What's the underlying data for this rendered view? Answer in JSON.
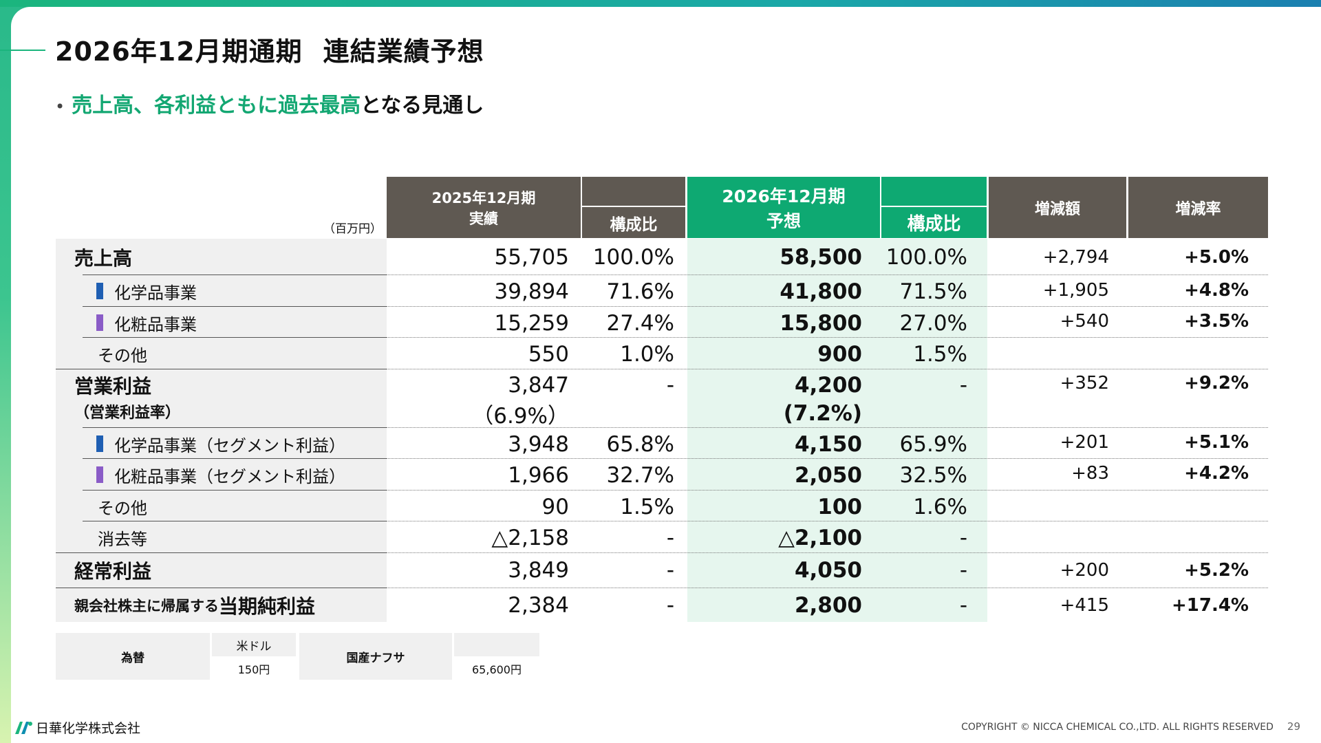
{
  "title_part1": "2026年12月期通期",
  "title_part2": "連結業績予想",
  "bullet_highlight": "売上高、各利益ともに過去最高",
  "bullet_rest": "となる見通し",
  "unit": "（百万円）",
  "headers": {
    "prev_period": "2025年12月期",
    "prev_sub": "実績",
    "prev_ratio": "構成比",
    "next_period": "2026年12月期",
    "next_sub": "予想",
    "next_ratio": "構成比",
    "change_amount": "増減額",
    "change_rate": "増減率"
  },
  "rows": [
    {
      "label": "売上高",
      "prev": "55,705",
      "prev_ratio": "100.0%",
      "next": "58,500",
      "next_ratio": "100.0%",
      "diff": "+2,794",
      "rate": "+5.0%"
    },
    {
      "label": "化学品事業",
      "prev": "39,894",
      "prev_ratio": "71.6%",
      "next": "41,800",
      "next_ratio": "71.5%",
      "diff": "+1,905",
      "rate": "+4.8%"
    },
    {
      "label": "化粧品事業",
      "prev": "15,259",
      "prev_ratio": "27.4%",
      "next": "15,800",
      "next_ratio": "27.0%",
      "diff": "+540",
      "rate": "+3.5%"
    },
    {
      "label": "その他",
      "prev": "550",
      "prev_ratio": "1.0%",
      "next": "900",
      "next_ratio": "1.5%",
      "diff": "",
      "rate": ""
    },
    {
      "label": "営業利益",
      "sublabel": "（営業利益率）",
      "prev": "3,847",
      "prev_sub": "（6.9%）",
      "prev_ratio": "-",
      "next": "4,200",
      "next_sub": "(7.2%)",
      "next_ratio": "-",
      "diff": "+352",
      "rate": "+9.2%"
    },
    {
      "label": "化学品事業（セグメント利益）",
      "prev": "3,948",
      "prev_ratio": "65.8%",
      "next": "4,150",
      "next_ratio": "65.9%",
      "diff": "+201",
      "rate": "+5.1%"
    },
    {
      "label": "化粧品事業（セグメント利益）",
      "prev": "1,966",
      "prev_ratio": "32.7%",
      "next": "2,050",
      "next_ratio": "32.5%",
      "diff": "+83",
      "rate": "+4.2%"
    },
    {
      "label": "その他",
      "prev": "90",
      "prev_ratio": "1.5%",
      "next": "100",
      "next_ratio": "1.6%",
      "diff": "",
      "rate": ""
    },
    {
      "label": "消去等",
      "prev": "△2,158",
      "prev_ratio": "-",
      "next": "△2,100",
      "next_ratio": "-",
      "diff": "",
      "rate": ""
    },
    {
      "label": "経常利益",
      "prev": "3,849",
      "prev_ratio": "-",
      "next": "4,050",
      "next_ratio": "-",
      "diff": "+200",
      "rate": "+5.2%"
    },
    {
      "label_small": "親会社株主に帰属する",
      "label": "当期純利益",
      "prev": "2,384",
      "prev_ratio": "-",
      "next": "2,800",
      "next_ratio": "-",
      "diff": "+415",
      "rate": "+17.4%"
    }
  ],
  "segment_colors": {
    "chemical": "#1f5fb3",
    "cosmetic": "#8a5cc7"
  },
  "fx": {
    "label": "為替",
    "usd_label": "米ドル",
    "usd_value": "150円",
    "naphtha_label": "国産ナフサ",
    "naphtha_value": "65,600円"
  },
  "footer": {
    "company": "日華化学株式会社",
    "copyright": "COPYRIGHT © NICCA CHEMICAL CO.,LTD. ALL RIGHTS RESERVED",
    "page": "29"
  }
}
